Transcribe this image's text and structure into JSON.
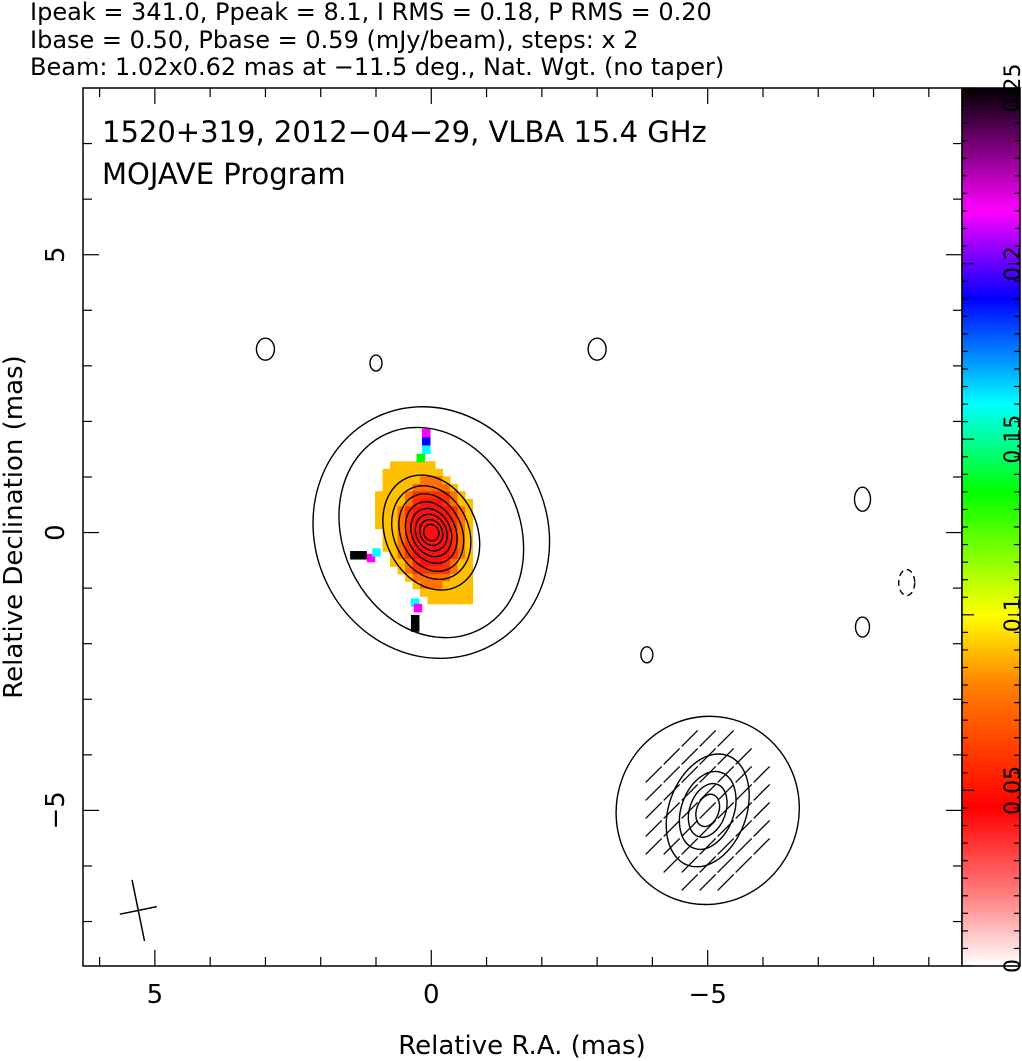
{
  "chart_data": {
    "type": "heatmap",
    "header_lines": [
      "Ipeak = 341.0, Ppeak = 8.1, I RMS = 0.18, P RMS = 0.20",
      "Ibase = 0.50, Pbase = 0.59 (mJy/beam), steps: x 2",
      "Beam: 1.02x0.62 mas at −11.5 deg., Nat. Wgt. (no taper)"
    ],
    "title_lines": [
      "1520+319, 2012−04−29, VLBA 15.4 GHz",
      "MOJAVE Program"
    ],
    "xlabel": "Relative R.A. (mas)",
    "ylabel": "Relative Declination (mas)",
    "xlim": [
      6.3,
      -9.6
    ],
    "ylim": [
      -7.8,
      8.0
    ],
    "x_ticks": [
      {
        "value": 5,
        "label": "5"
      },
      {
        "value": 0,
        "label": "0"
      },
      {
        "value": -5,
        "label": "−5"
      }
    ],
    "y_ticks": [
      {
        "value": 5,
        "label": "5"
      },
      {
        "value": 0,
        "label": "0"
      },
      {
        "value": -5,
        "label": "−5"
      }
    ],
    "colorbar": {
      "range": [
        0,
        0.25
      ],
      "ticks": [
        {
          "value": 0,
          "label": "0"
        },
        {
          "value": 0.05,
          "label": "0.05"
        },
        {
          "value": 0.1,
          "label": "0.1"
        },
        {
          "value": 0.15,
          "label": "0.15"
        },
        {
          "value": 0.2,
          "label": "0.2"
        },
        {
          "value": 0.25,
          "label": "0.25"
        }
      ],
      "colors": [
        "#ffffff",
        "#ff0000",
        "#ffff00",
        "#00ff00",
        "#00ffff",
        "#0000ff",
        "#ff00ff",
        "#000000"
      ]
    },
    "stokes_i_contours": {
      "base_mJy_per_beam": 0.5,
      "step_factor": 2,
      "components": [
        {
          "name": "core",
          "center": [
            0.0,
            0.0
          ],
          "radii_ra": [
            4.2,
            3.2,
            1.65,
            1.35,
            1.1,
            0.88,
            0.7,
            0.55,
            0.4,
            0.27
          ],
          "radii_dec": [
            4.6,
            3.9,
            2.15,
            1.75,
            1.45,
            1.15,
            0.9,
            0.68,
            0.48,
            0.3
          ],
          "rot_deg": -25
        },
        {
          "name": "jet",
          "center": [
            -5.0,
            -5.0
          ],
          "radii_ra": [
            3.3,
            1.4,
            0.95,
            0.65,
            0.4
          ],
          "radii_dec": [
            3.4,
            2.1,
            1.45,
            1.0,
            0.6
          ],
          "rot_deg": 20
        }
      ]
    },
    "beam": {
      "major_mas": 1.02,
      "minor_mas": 0.62,
      "pa_deg": -11.5,
      "position": [
        5.3,
        -6.8
      ]
    },
    "polarization_pixels": [
      {
        "ra": 0.0,
        "dec": 0.0,
        "frac": 0.045
      }
    ]
  }
}
